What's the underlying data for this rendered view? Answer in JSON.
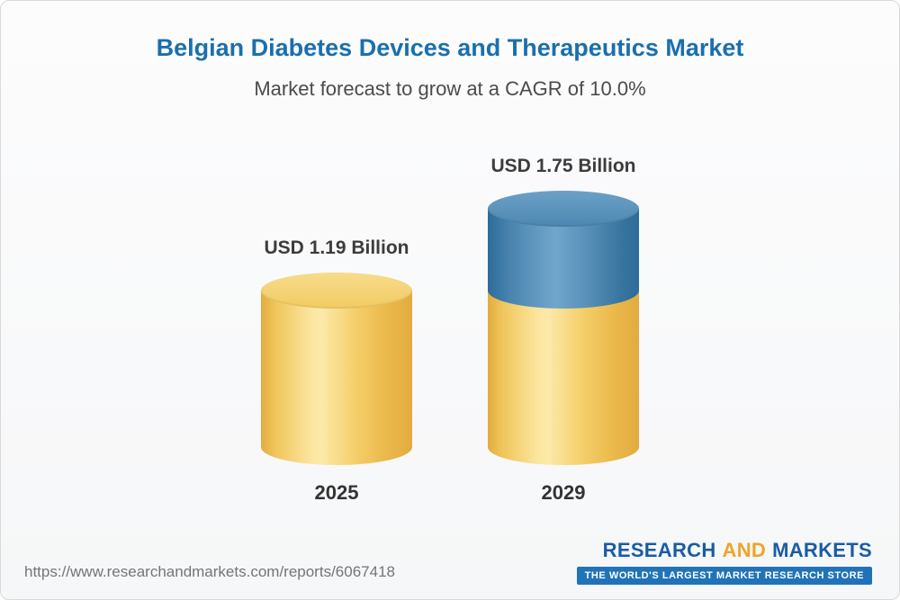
{
  "header": {
    "title": "Belgian Diabetes Devices and Therapeutics Market",
    "subtitle": "Market forecast to grow at a CAGR of 10.0%"
  },
  "chart_data": {
    "type": "bar",
    "variant": "3d-cylinder",
    "categories": [
      "2025",
      "2029"
    ],
    "values": [
      1.19,
      1.75
    ],
    "value_labels": [
      "USD 1.19 Billion",
      "USD 1.75 Billion"
    ],
    "unit": "USD Billion",
    "baseline_index": 0,
    "cagr_percent": 10.0,
    "legend": "none",
    "grid": false,
    "colors": {
      "base_segment": "#F3CD67",
      "growth_segment": "#4381AC"
    },
    "notes": "2029 cylinder shows growth above the 2025 level as a blue top segment"
  },
  "footer": {
    "url": "https://www.researchandmarkets.com/reports/6067418",
    "logo": {
      "part1": "RESEARCH",
      "part2": "AND",
      "part3": "MARKETS",
      "tagline": "THE WORLD'S LARGEST MARKET RESEARCH STORE"
    }
  }
}
